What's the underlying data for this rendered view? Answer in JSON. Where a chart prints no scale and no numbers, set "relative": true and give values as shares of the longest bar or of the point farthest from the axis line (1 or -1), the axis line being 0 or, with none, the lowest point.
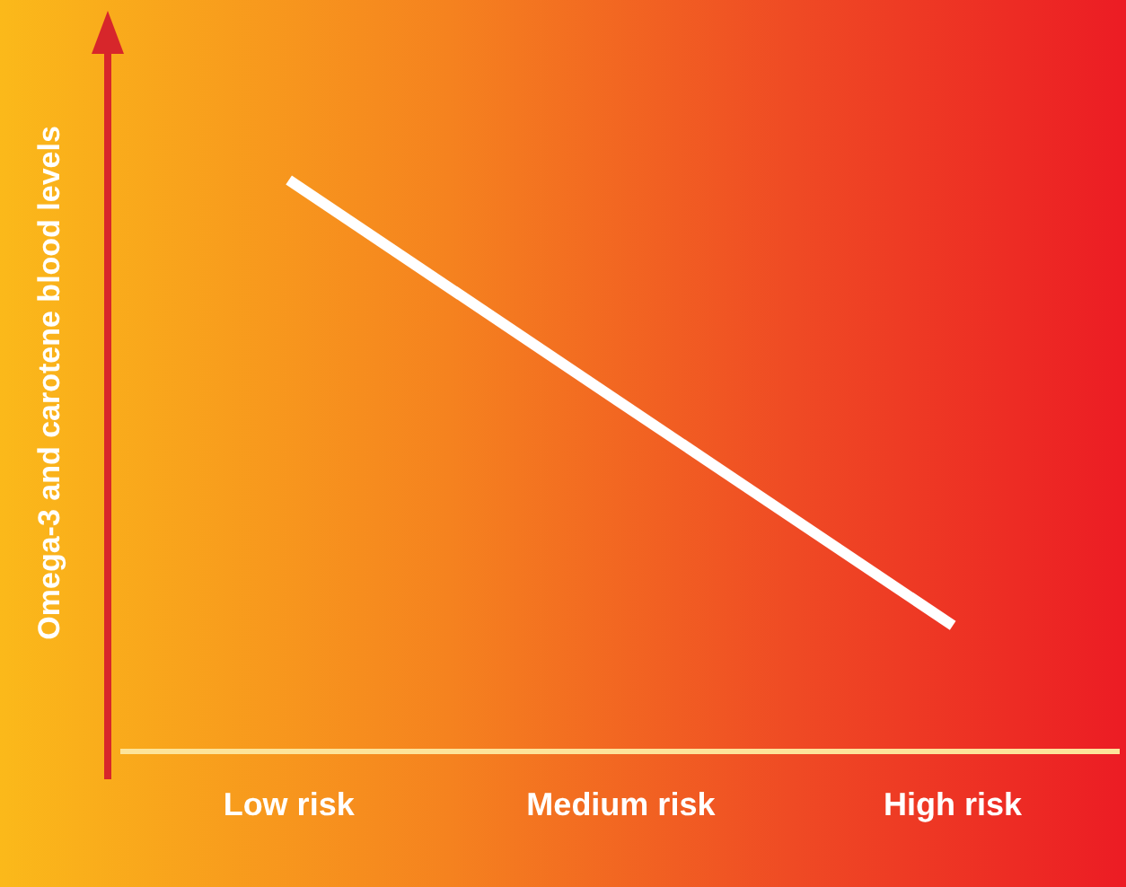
{
  "chart_data": {
    "type": "line",
    "relative": true,
    "ylabel": "Omega-3 and carotene blood levels",
    "categories": [
      "Low risk",
      "Medium risk",
      "High risk"
    ],
    "series": [
      {
        "color": "#ffffff",
        "values": [
          1,
          0.61,
          0.22
        ]
      }
    ],
    "marker": "none",
    "grid": false,
    "legend": false
  }
}
